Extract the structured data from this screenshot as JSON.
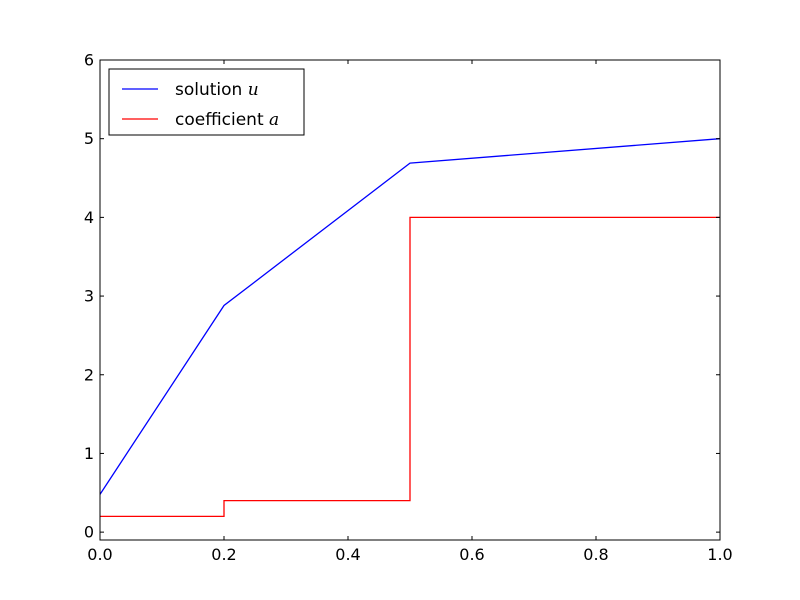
{
  "chart_data": {
    "type": "line",
    "title": "",
    "xlabel": "",
    "ylabel": "",
    "xlim": [
      0,
      1
    ],
    "ylim": [
      -0.1,
      6
    ],
    "xticks": [
      0.0,
      0.2,
      0.4,
      0.6,
      0.8,
      1.0
    ],
    "yticks": [
      0,
      1,
      2,
      3,
      4,
      5,
      6
    ],
    "xtick_labels": [
      "0.0",
      "0.2",
      "0.4",
      "0.6",
      "0.8",
      "1.0"
    ],
    "ytick_labels": [
      "0",
      "1",
      "2",
      "3",
      "4",
      "5",
      "6"
    ],
    "grid": false,
    "legend_position": "top-left",
    "series": [
      {
        "name": "solution u",
        "label_text": "solution ",
        "label_var": "u",
        "color": "#0000ff",
        "step": false,
        "x": [
          0.0,
          0.2,
          0.5,
          1.0
        ],
        "y": [
          0.48,
          2.88,
          4.69,
          5.0
        ]
      },
      {
        "name": "coefficient a",
        "label_text": "coefficient ",
        "label_var": "a",
        "color": "#ff0000",
        "step": true,
        "x": [
          0.0,
          0.2,
          0.2,
          0.5,
          0.5,
          1.0
        ],
        "y": [
          0.2,
          0.2,
          0.4,
          0.4,
          4.0,
          4.0
        ]
      }
    ]
  }
}
